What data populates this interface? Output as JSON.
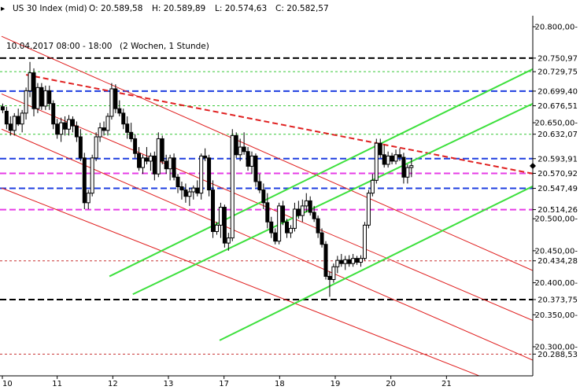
{
  "header": {
    "instrument": "US 30 Index (mid)",
    "open": "O: 20.589,58",
    "high": "H: 20.589,89",
    "low": "L: 20.574,63",
    "close": "C: 20.582,57"
  },
  "chart_data": {
    "type": "candlestick",
    "subtitle": "10.04.2017 08:00 - 18:00",
    "period": "(2 Wochen, 1 Stunde)",
    "ylim": [
      20265,
      20815
    ],
    "y_ticks": [
      {
        "label": "20.800,00-",
        "value": 20800
      },
      {
        "label": "20.750,97",
        "value": 20750.97
      },
      {
        "label": "20.729,75",
        "value": 20729.75
      },
      {
        "label": "20.699,40",
        "value": 20699.4
      },
      {
        "label": "20.676,51",
        "value": 20676.51
      },
      {
        "label": "20.650,00-",
        "value": 20650
      },
      {
        "label": "20.632,07",
        "value": 20632.07
      },
      {
        "label": "20.593,91",
        "value": 20593.91
      },
      {
        "label": "20.570,92",
        "value": 20570.92
      },
      {
        "label": "20.547,49",
        "value": 20547.49
      },
      {
        "label": "20.514,26",
        "value": 20514.26
      },
      {
        "label": "20.500,00-",
        "value": 20500
      },
      {
        "label": "20.450,00-",
        "value": 20450
      },
      {
        "label": "20.434,28",
        "value": 20434.28
      },
      {
        "label": "20.400,00-",
        "value": 20400
      },
      {
        "label": "20.373,75",
        "value": 20373.75
      },
      {
        "label": "20.350,00-",
        "value": 20350
      },
      {
        "label": "20.300,00-",
        "value": 20300
      },
      {
        "label": "20.288,53",
        "value": 20288.53
      }
    ],
    "current_price": 20582.57,
    "x_ticks": [
      {
        "label": "10",
        "x": 0
      },
      {
        "label": "11",
        "x": 10
      },
      {
        "label": "12",
        "x": 20
      },
      {
        "label": "13",
        "x": 30
      },
      {
        "label": "17",
        "x": 40
      },
      {
        "label": "18",
        "x": 50
      },
      {
        "label": "19",
        "x": 60
      },
      {
        "label": "20",
        "x": 70
      },
      {
        "label": "21",
        "x": 80
      }
    ],
    "x_range": [
      0,
      95.8
    ],
    "horizontal_levels": [
      {
        "value": 20750.97,
        "color": "#000000",
        "style": "dash-thick"
      },
      {
        "value": 20373.75,
        "color": "#000000",
        "style": "dash-thick"
      },
      {
        "value": 20699.4,
        "color": "#1f3fe0",
        "style": "dash-thick"
      },
      {
        "value": 20593.91,
        "color": "#1f3fe0",
        "style": "dash-thick"
      },
      {
        "value": 20547.49,
        "color": "#1f3fe0",
        "style": "dash-thick"
      },
      {
        "value": 20570.92,
        "color": "#e63ce6",
        "style": "dash-thick"
      },
      {
        "value": 20514.26,
        "color": "#e63ce6",
        "style": "dash-thick"
      },
      {
        "value": 20729.75,
        "color": "#37c837",
        "style": "dash-thin"
      },
      {
        "value": 20676.51,
        "color": "#37c837",
        "style": "dash-thin"
      },
      {
        "value": 20632.07,
        "color": "#37c837",
        "style": "dash-thin"
      },
      {
        "value": 20434.28,
        "color": "#c83232",
        "style": "dash-thin"
      },
      {
        "value": 20288.53,
        "color": "#c83232",
        "style": "dash-thin"
      }
    ],
    "trend_lines": [
      {
        "x1": 4.4,
        "y1": 20725,
        "x2": 95.8,
        "y2": 20570,
        "color": "#e02020",
        "style": "dashed",
        "width": 2
      },
      {
        "x1": 0,
        "y1": 20785,
        "x2": 95.8,
        "y2": 20418,
        "color": "#e02020",
        "style": "solid",
        "width": 1
      },
      {
        "x1": 0,
        "y1": 20695,
        "x2": 95.8,
        "y2": 20340,
        "color": "#e02020",
        "style": "solid",
        "width": 1
      },
      {
        "x1": 0,
        "y1": 20640,
        "x2": 95.8,
        "y2": 20278,
        "color": "#e02020",
        "style": "solid",
        "width": 1
      },
      {
        "x1": 0,
        "y1": 20548,
        "x2": 87.8,
        "y2": 20248,
        "color": "#e02020",
        "style": "solid",
        "width": 1
      },
      {
        "x1": 19.4,
        "y1": 20410,
        "x2": 95.8,
        "y2": 20735,
        "color": "#3de03d",
        "style": "solid",
        "width": 2
      },
      {
        "x1": 23.6,
        "y1": 20382,
        "x2": 95.8,
        "y2": 20681,
        "color": "#3de03d",
        "style": "solid",
        "width": 2
      },
      {
        "x1": 39.2,
        "y1": 20310,
        "x2": 95.8,
        "y2": 20552,
        "color": "#3de03d",
        "style": "solid",
        "width": 2
      }
    ],
    "candles": [
      {
        "x": 0.2,
        "o": 20675,
        "h": 20680,
        "l": 20665,
        "c": 20670
      },
      {
        "x": 0.9,
        "o": 20668,
        "h": 20675,
        "l": 20640,
        "c": 20648
      },
      {
        "x": 1.6,
        "o": 20648,
        "h": 20660,
        "l": 20630,
        "c": 20638
      },
      {
        "x": 2.3,
        "o": 20638,
        "h": 20665,
        "l": 20630,
        "c": 20660
      },
      {
        "x": 3.0,
        "o": 20660,
        "h": 20672,
        "l": 20645,
        "c": 20648
      },
      {
        "x": 3.7,
        "o": 20648,
        "h": 20670,
        "l": 20635,
        "c": 20665
      },
      {
        "x": 4.4,
        "o": 20665,
        "h": 20705,
        "l": 20655,
        "c": 20700
      },
      {
        "x": 5.1,
        "o": 20700,
        "h": 20745,
        "l": 20690,
        "c": 20728
      },
      {
        "x": 5.8,
        "o": 20728,
        "h": 20735,
        "l": 20660,
        "c": 20672
      },
      {
        "x": 6.5,
        "o": 20672,
        "h": 20712,
        "l": 20665,
        "c": 20705
      },
      {
        "x": 7.2,
        "o": 20705,
        "h": 20712,
        "l": 20670,
        "c": 20676
      },
      {
        "x": 7.9,
        "o": 20676,
        "h": 20708,
        "l": 20670,
        "c": 20700
      },
      {
        "x": 8.6,
        "o": 20700,
        "h": 20708,
        "l": 20670,
        "c": 20680
      },
      {
        "x": 9.3,
        "o": 20680,
        "h": 20685,
        "l": 20640,
        "c": 20648
      },
      {
        "x": 10.0,
        "o": 20648,
        "h": 20656,
        "l": 20625,
        "c": 20632
      },
      {
        "x": 10.7,
        "o": 20632,
        "h": 20658,
        "l": 20620,
        "c": 20650
      },
      {
        "x": 11.4,
        "o": 20650,
        "h": 20660,
        "l": 20630,
        "c": 20640
      },
      {
        "x": 12.1,
        "o": 20640,
        "h": 20662,
        "l": 20630,
        "c": 20655
      },
      {
        "x": 12.8,
        "o": 20655,
        "h": 20660,
        "l": 20635,
        "c": 20645
      },
      {
        "x": 13.5,
        "o": 20645,
        "h": 20652,
        "l": 20620,
        "c": 20628
      },
      {
        "x": 14.2,
        "o": 20628,
        "h": 20640,
        "l": 20590,
        "c": 20595
      },
      {
        "x": 14.9,
        "o": 20595,
        "h": 20603,
        "l": 20515,
        "c": 20525
      },
      {
        "x": 15.6,
        "o": 20525,
        "h": 20545,
        "l": 20515,
        "c": 20540
      },
      {
        "x": 16.3,
        "o": 20540,
        "h": 20600,
        "l": 20535,
        "c": 20595
      },
      {
        "x": 17.0,
        "o": 20595,
        "h": 20635,
        "l": 20590,
        "c": 20628
      },
      {
        "x": 17.7,
        "o": 20628,
        "h": 20650,
        "l": 20620,
        "c": 20642
      },
      {
        "x": 18.4,
        "o": 20642,
        "h": 20652,
        "l": 20630,
        "c": 20638
      },
      {
        "x": 19.1,
        "o": 20638,
        "h": 20665,
        "l": 20630,
        "c": 20660
      },
      {
        "x": 19.8,
        "o": 20660,
        "h": 20712,
        "l": 20655,
        "c": 20703
      },
      {
        "x": 20.5,
        "o": 20703,
        "h": 20710,
        "l": 20665,
        "c": 20672
      },
      {
        "x": 21.2,
        "o": 20672,
        "h": 20685,
        "l": 20660,
        "c": 20665
      },
      {
        "x": 21.9,
        "o": 20665,
        "h": 20672,
        "l": 20640,
        "c": 20648
      },
      {
        "x": 22.6,
        "o": 20648,
        "h": 20660,
        "l": 20625,
        "c": 20635
      },
      {
        "x": 23.3,
        "o": 20635,
        "h": 20650,
        "l": 20620,
        "c": 20625
      },
      {
        "x": 24.0,
        "o": 20625,
        "h": 20632,
        "l": 20595,
        "c": 20602
      },
      {
        "x": 24.7,
        "o": 20602,
        "h": 20612,
        "l": 20575,
        "c": 20580
      },
      {
        "x": 25.4,
        "o": 20580,
        "h": 20600,
        "l": 20570,
        "c": 20595
      },
      {
        "x": 26.1,
        "o": 20595,
        "h": 20612,
        "l": 20585,
        "c": 20590
      },
      {
        "x": 26.8,
        "o": 20590,
        "h": 20603,
        "l": 20575,
        "c": 20598
      },
      {
        "x": 27.5,
        "o": 20598,
        "h": 20605,
        "l": 20560,
        "c": 20570
      },
      {
        "x": 28.2,
        "o": 20570,
        "h": 20635,
        "l": 20565,
        "c": 20625
      },
      {
        "x": 28.9,
        "o": 20625,
        "h": 20630,
        "l": 20585,
        "c": 20590
      },
      {
        "x": 29.6,
        "o": 20590,
        "h": 20600,
        "l": 20570,
        "c": 20578
      },
      {
        "x": 30.3,
        "o": 20578,
        "h": 20600,
        "l": 20560,
        "c": 20595
      },
      {
        "x": 31.0,
        "o": 20595,
        "h": 20602,
        "l": 20560,
        "c": 20565
      },
      {
        "x": 31.7,
        "o": 20565,
        "h": 20570,
        "l": 20540,
        "c": 20550
      },
      {
        "x": 32.4,
        "o": 20550,
        "h": 20558,
        "l": 20530,
        "c": 20545
      },
      {
        "x": 33.1,
        "o": 20545,
        "h": 20555,
        "l": 20525,
        "c": 20535
      },
      {
        "x": 33.8,
        "o": 20535,
        "h": 20548,
        "l": 20520,
        "c": 20542
      },
      {
        "x": 34.5,
        "o": 20542,
        "h": 20552,
        "l": 20530,
        "c": 20548
      },
      {
        "x": 35.2,
        "o": 20548,
        "h": 20560,
        "l": 20535,
        "c": 20540
      },
      {
        "x": 35.9,
        "o": 20540,
        "h": 20602,
        "l": 20530,
        "c": 20598
      },
      {
        "x": 36.6,
        "o": 20598,
        "h": 20610,
        "l": 20590,
        "c": 20595
      },
      {
        "x": 37.3,
        "o": 20595,
        "h": 20600,
        "l": 20535,
        "c": 20545
      },
      {
        "x": 38.0,
        "o": 20545,
        "h": 20560,
        "l": 20470,
        "c": 20480
      },
      {
        "x": 38.7,
        "o": 20480,
        "h": 20495,
        "l": 20475,
        "c": 20490
      },
      {
        "x": 39.4,
        "o": 20490,
        "h": 20525,
        "l": 20470,
        "c": 20518
      },
      {
        "x": 40.1,
        "o": 20518,
        "h": 20522,
        "l": 20455,
        "c": 20462
      },
      {
        "x": 40.8,
        "o": 20462,
        "h": 20478,
        "l": 20450,
        "c": 20470
      },
      {
        "x": 41.5,
        "o": 20470,
        "h": 20640,
        "l": 20465,
        "c": 20630
      },
      {
        "x": 42.2,
        "o": 20630,
        "h": 20635,
        "l": 20595,
        "c": 20600
      },
      {
        "x": 42.9,
        "o": 20600,
        "h": 20625,
        "l": 20590,
        "c": 20612
      },
      {
        "x": 43.6,
        "o": 20612,
        "h": 20635,
        "l": 20600,
        "c": 20605
      },
      {
        "x": 44.3,
        "o": 20605,
        "h": 20612,
        "l": 20575,
        "c": 20582
      },
      {
        "x": 45.0,
        "o": 20582,
        "h": 20605,
        "l": 20570,
        "c": 20598
      },
      {
        "x": 45.7,
        "o": 20598,
        "h": 20602,
        "l": 20550,
        "c": 20558
      },
      {
        "x": 46.4,
        "o": 20558,
        "h": 20570,
        "l": 20540,
        "c": 20545
      },
      {
        "x": 47.1,
        "o": 20545,
        "h": 20555,
        "l": 20515,
        "c": 20525
      },
      {
        "x": 47.8,
        "o": 20525,
        "h": 20540,
        "l": 20485,
        "c": 20495
      },
      {
        "x": 48.5,
        "o": 20495,
        "h": 20503,
        "l": 20470,
        "c": 20478
      },
      {
        "x": 49.2,
        "o": 20478,
        "h": 20485,
        "l": 20460,
        "c": 20465
      },
      {
        "x": 49.9,
        "o": 20465,
        "h": 20525,
        "l": 20460,
        "c": 20520
      },
      {
        "x": 50.6,
        "o": 20520,
        "h": 20528,
        "l": 20490,
        "c": 20495
      },
      {
        "x": 51.3,
        "o": 20495,
        "h": 20500,
        "l": 20470,
        "c": 20478
      },
      {
        "x": 52.0,
        "o": 20478,
        "h": 20490,
        "l": 20470,
        "c": 20485
      },
      {
        "x": 52.7,
        "o": 20485,
        "h": 20525,
        "l": 20480,
        "c": 20515
      },
      {
        "x": 53.4,
        "o": 20515,
        "h": 20528,
        "l": 20500,
        "c": 20505
      },
      {
        "x": 54.1,
        "o": 20505,
        "h": 20530,
        "l": 20495,
        "c": 20520
      },
      {
        "x": 54.8,
        "o": 20520,
        "h": 20540,
        "l": 20510,
        "c": 20528
      },
      {
        "x": 55.5,
        "o": 20528,
        "h": 20535,
        "l": 20505,
        "c": 20510
      },
      {
        "x": 56.2,
        "o": 20510,
        "h": 20520,
        "l": 20495,
        "c": 20500
      },
      {
        "x": 56.9,
        "o": 20500,
        "h": 20505,
        "l": 20470,
        "c": 20478
      },
      {
        "x": 57.6,
        "o": 20478,
        "h": 20485,
        "l": 20455,
        "c": 20460
      },
      {
        "x": 58.3,
        "o": 20460,
        "h": 20465,
        "l": 20405,
        "c": 20410
      },
      {
        "x": 59.0,
        "o": 20410,
        "h": 20418,
        "l": 20378,
        "c": 20405
      },
      {
        "x": 59.7,
        "o": 20405,
        "h": 20430,
        "l": 20400,
        "c": 20425
      },
      {
        "x": 60.4,
        "o": 20425,
        "h": 20442,
        "l": 20415,
        "c": 20435
      },
      {
        "x": 61.1,
        "o": 20435,
        "h": 20445,
        "l": 20425,
        "c": 20430
      },
      {
        "x": 61.8,
        "o": 20430,
        "h": 20442,
        "l": 20420,
        "c": 20436
      },
      {
        "x": 62.5,
        "o": 20436,
        "h": 20443,
        "l": 20425,
        "c": 20430
      },
      {
        "x": 63.2,
        "o": 20430,
        "h": 20445,
        "l": 20425,
        "c": 20438
      },
      {
        "x": 63.9,
        "o": 20438,
        "h": 20442,
        "l": 20428,
        "c": 20432
      },
      {
        "x": 64.6,
        "o": 20432,
        "h": 20443,
        "l": 20425,
        "c": 20438
      },
      {
        "x": 65.3,
        "o": 20438,
        "h": 20495,
        "l": 20435,
        "c": 20490
      },
      {
        "x": 66.0,
        "o": 20490,
        "h": 20545,
        "l": 20485,
        "c": 20540
      },
      {
        "x": 66.7,
        "o": 20540,
        "h": 20570,
        "l": 20535,
        "c": 20560
      },
      {
        "x": 67.4,
        "o": 20560,
        "h": 20625,
        "l": 20555,
        "c": 20618
      },
      {
        "x": 68.1,
        "o": 20618,
        "h": 20625,
        "l": 20595,
        "c": 20600
      },
      {
        "x": 68.8,
        "o": 20600,
        "h": 20615,
        "l": 20580,
        "c": 20585
      },
      {
        "x": 69.5,
        "o": 20585,
        "h": 20605,
        "l": 20580,
        "c": 20598
      },
      {
        "x": 70.2,
        "o": 20598,
        "h": 20603,
        "l": 20585,
        "c": 20590
      },
      {
        "x": 70.9,
        "o": 20590,
        "h": 20608,
        "l": 20585,
        "c": 20600
      },
      {
        "x": 71.6,
        "o": 20600,
        "h": 20610,
        "l": 20590,
        "c": 20596
      },
      {
        "x": 72.3,
        "o": 20596,
        "h": 20603,
        "l": 20555,
        "c": 20565
      },
      {
        "x": 73.0,
        "o": 20565,
        "h": 20585,
        "l": 20555,
        "c": 20580
      },
      {
        "x": 73.7,
        "o": 20580,
        "h": 20595,
        "l": 20565,
        "c": 20583
      }
    ]
  }
}
